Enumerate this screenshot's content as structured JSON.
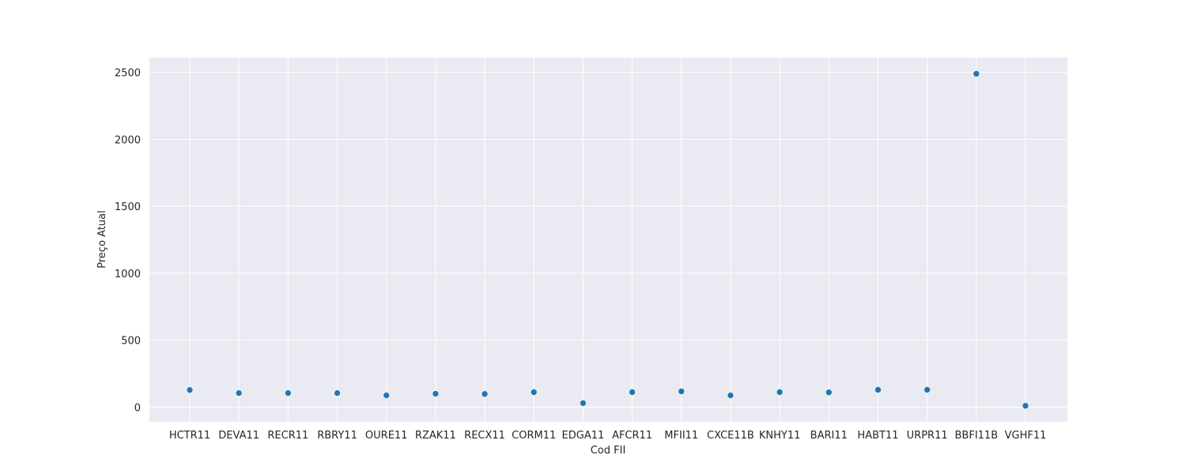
{
  "chart_data": {
    "type": "scatter",
    "title": "",
    "xlabel": "Cod FII",
    "ylabel": "Preço Atual",
    "categories": [
      "HCTR11",
      "DEVA11",
      "RECR11",
      "RBRY11",
      "OURE11",
      "RZAK11",
      "RECX11",
      "CORM11",
      "EDGA11",
      "AFCR11",
      "MFII11",
      "CXCE11B",
      "KNHY11",
      "BARI11",
      "HABT11",
      "URPR11",
      "BBFI11B",
      "VGHF11"
    ],
    "values": [
      128,
      105,
      105,
      105,
      88,
      100,
      98,
      112,
      30,
      112,
      118,
      88,
      112,
      110,
      130,
      130,
      2490,
      10
    ],
    "ylim": [
      -110,
      2610
    ],
    "yticks": [
      0,
      500,
      1000,
      1500,
      2000,
      2500
    ],
    "grid": true,
    "legend": "none",
    "colors": {
      "marker": "#1f77b4",
      "plot_background": "#eaeaf2",
      "grid": "#ffffff"
    }
  }
}
